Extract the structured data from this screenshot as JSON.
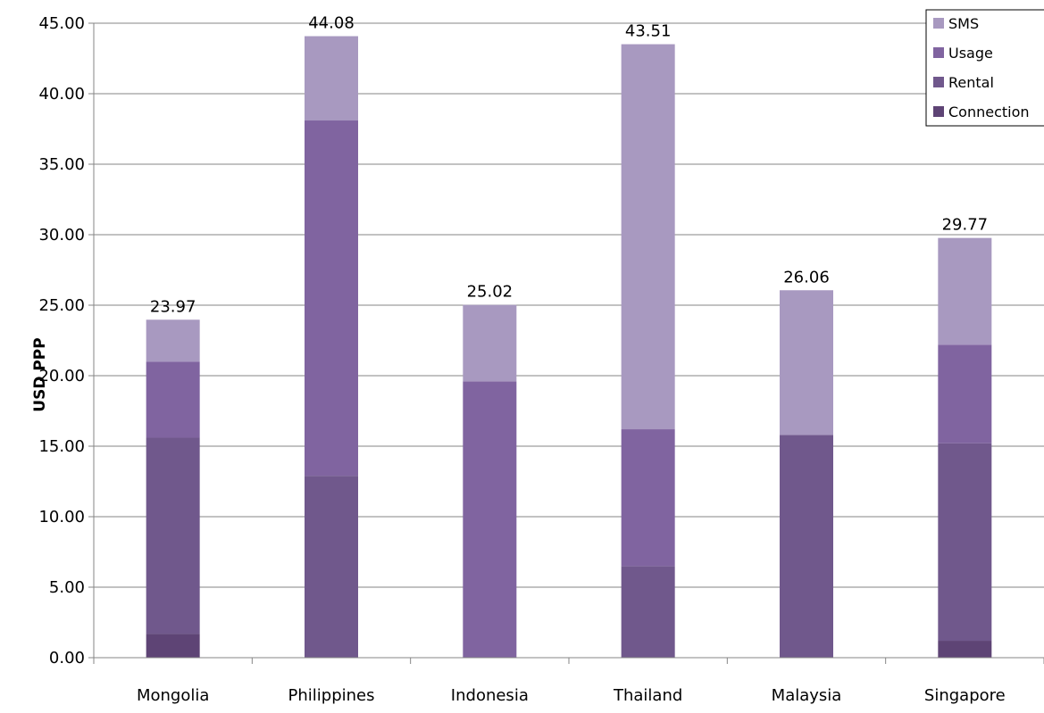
{
  "chart_data": {
    "type": "bar",
    "stacked": true,
    "categories": [
      "Mongolia",
      "Philippines",
      "Indonesia",
      "Thailand",
      "Malaysia",
      "Singapore"
    ],
    "series": [
      {
        "name": "Connection",
        "color": "#5e4475",
        "values": [
          1.7,
          0,
          0,
          0,
          0,
          1.2
        ]
      },
      {
        "name": "Rental",
        "color": "#70588c",
        "values": [
          13.9,
          12.9,
          0,
          6.5,
          15.8,
          14.0
        ]
      },
      {
        "name": "Usage",
        "color": "#8064a0",
        "values": [
          5.4,
          25.2,
          19.6,
          9.7,
          0,
          7.0
        ]
      },
      {
        "name": "SMS",
        "color": "#a899c0",
        "values": [
          2.97,
          5.98,
          5.42,
          27.31,
          10.26,
          7.57
        ]
      }
    ],
    "totals": [
      "23.97",
      "44.08",
      "25.02",
      "43.51",
      "26.06",
      "29.77"
    ],
    "ylabel": "USD PPP",
    "ylim": [
      0,
      45
    ],
    "yticks": [
      "0.00",
      "5.00",
      "10.00",
      "15.00",
      "20.00",
      "25.00",
      "30.00",
      "35.00",
      "40.00",
      "45.00"
    ],
    "grid": true,
    "legend": {
      "position": "top-right",
      "order": [
        "SMS",
        "Usage",
        "Rental",
        "Connection"
      ]
    }
  }
}
